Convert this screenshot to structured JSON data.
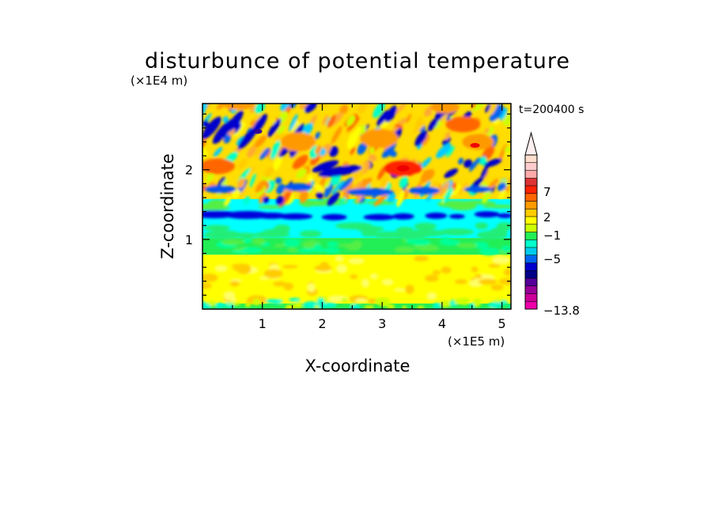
{
  "chart_data": {
    "type": "heatmap",
    "title": "disturbunce of potential temperature",
    "xlabel": "X-coordinate",
    "ylabel": "Z-coordinate",
    "x_unit": "(×1E5 m)",
    "y_unit": "(×1E4 m)",
    "time_label": "t=200400 s",
    "xlim": [
      0,
      5.15
    ],
    "ylim": [
      0,
      2.95
    ],
    "x_ticks": [
      "1",
      "2",
      "3",
      "4",
      "5"
    ],
    "x_tick_values": [
      1,
      2,
      3,
      4,
      5
    ],
    "y_ticks": [
      "1",
      "2"
    ],
    "y_tick_values": [
      1,
      2
    ],
    "colorbar": {
      "labels": [
        "7",
        "2",
        "−1",
        "−5",
        "−13.8"
      ],
      "label_values": [
        7,
        2,
        -1,
        -5,
        -13.8
      ],
      "extend": "max",
      "colors": [
        "#ee00aa",
        "#cc0099",
        "#990099",
        "#550099",
        "#000088",
        "#0000cc",
        "#0066ee",
        "#00ccee",
        "#00ffcc",
        "#22ee55",
        "#ccff00",
        "#ffff00",
        "#ffcc00",
        "#ff9900",
        "#ff6600",
        "#ff2200",
        "#dd3333",
        "#ffaaaa",
        "#ffcccc",
        "#ffddcc"
      ]
    },
    "bands": [
      {
        "z_range": [
          0.0,
          0.08
        ],
        "level": "−1 to 2",
        "description_color": "#22ee55"
      },
      {
        "z_range": [
          0.08,
          0.78
        ],
        "level": "0 to 2",
        "description_color": "#ffff00"
      },
      {
        "z_range": [
          0.78,
          1.02
        ],
        "level": "−1 to 0",
        "description_color": "#22ee55"
      },
      {
        "z_range": [
          1.02,
          1.55
        ],
        "level": "−2 to −1",
        "description_color": "#00ffff"
      },
      {
        "z_range": [
          1.28,
          1.42
        ],
        "level": "−5 to −3",
        "description_color": "#0000cc"
      },
      {
        "z_range": [
          1.55,
          2.95
        ],
        "level": "−5 to 7",
        "description_color": "mixed"
      }
    ],
    "max_region": {
      "x": 3.35,
      "z": 2.02,
      "approx_value": 7
    }
  }
}
